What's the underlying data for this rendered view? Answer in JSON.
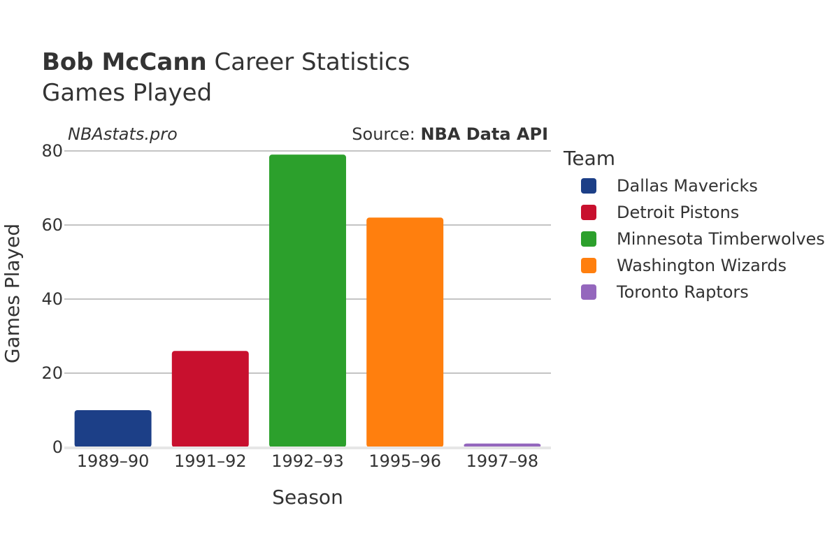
{
  "header": {
    "title_bold": "Bob McCann",
    "title_rest": " Career Statistics",
    "subtitle": "Games Played"
  },
  "credits": {
    "site": "NBAstats.pro",
    "source_prefix": "Source: ",
    "source_name": "NBA Data API"
  },
  "chart_data": {
    "type": "bar",
    "title": "Bob McCann Career Statistics",
    "subtitle": "Games Played",
    "xlabel": "Season",
    "ylabel": "Games Played",
    "ylim": [
      0,
      80
    ],
    "yticks": [
      0,
      20,
      40,
      60,
      80
    ],
    "grid": true,
    "legend_title": "Team",
    "legend_position": "right",
    "categories": [
      "1989–90",
      "1991–92",
      "1992–93",
      "1995–96",
      "1997–98"
    ],
    "values": [
      10,
      26,
      79,
      62,
      1
    ],
    "teams": [
      "Dallas Mavericks",
      "Detroit Pistons",
      "Minnesota Timberwolves",
      "Washington Wizards",
      "Toronto Raptors"
    ],
    "colors": [
      "#1c3f87",
      "#c8102e",
      "#2ca02c",
      "#ff7f0e",
      "#9467bd"
    ]
  }
}
